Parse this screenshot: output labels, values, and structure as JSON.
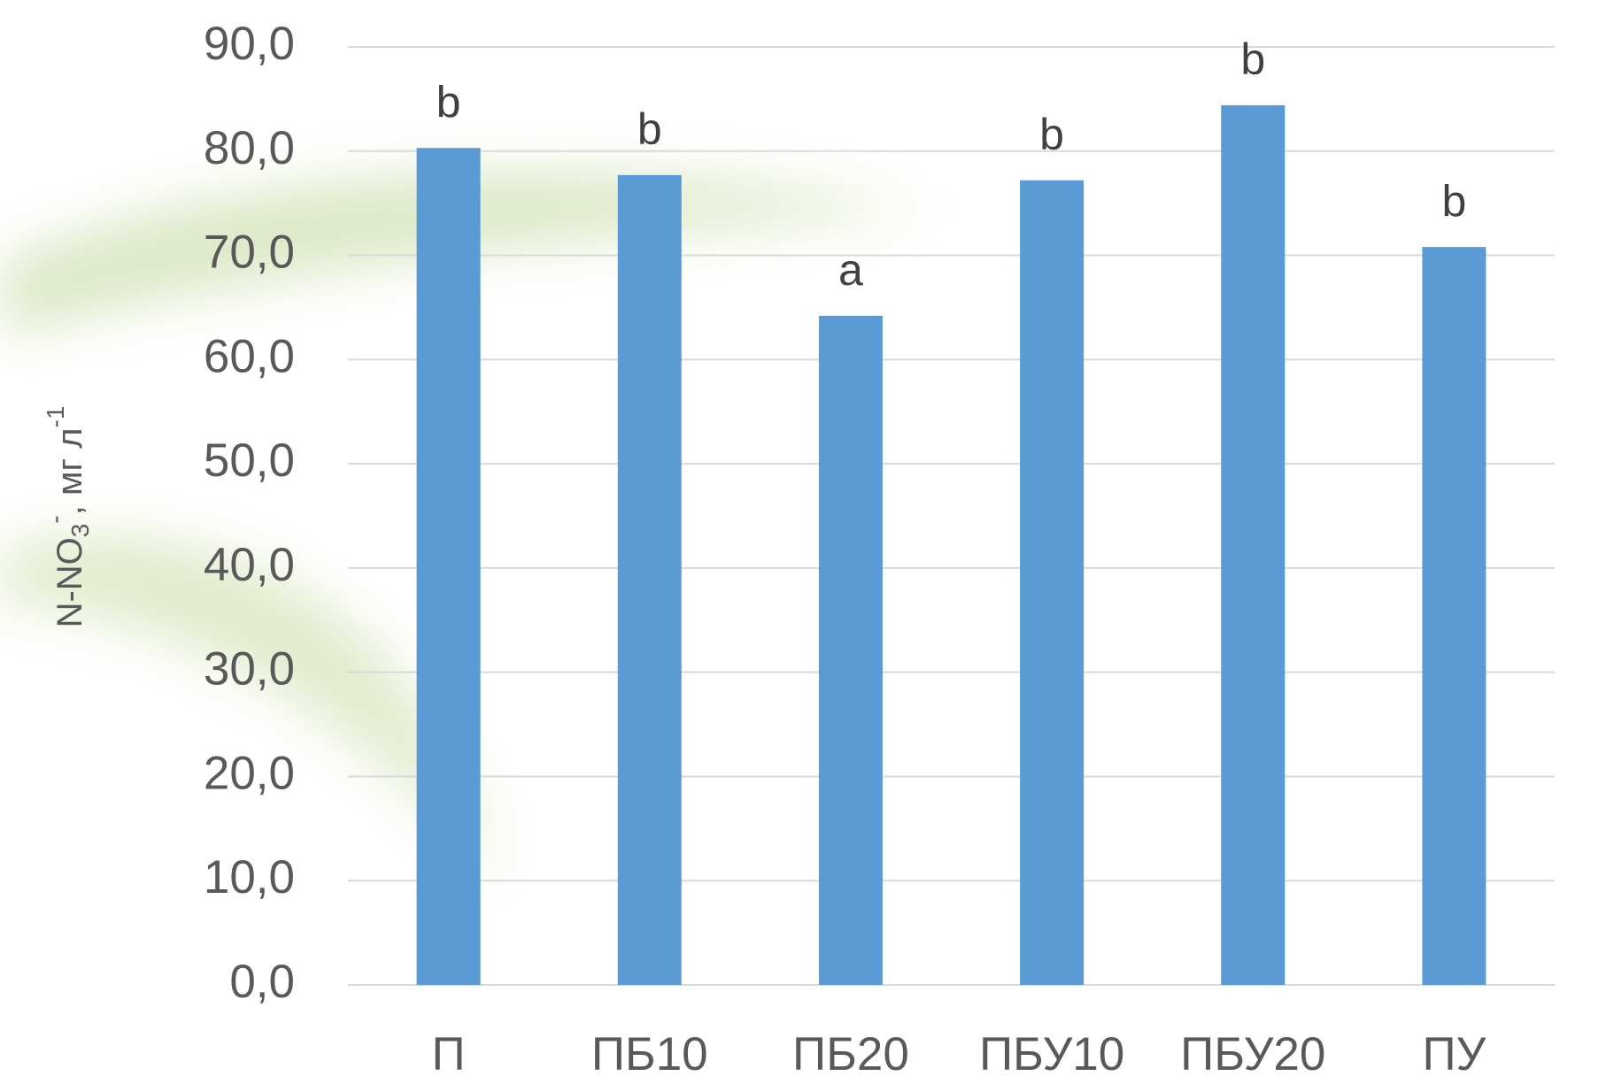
{
  "chart_data": {
    "type": "bar",
    "categories": [
      "П",
      "ПБ10",
      "ПБ20",
      "ПБУ10",
      "ПБУ20",
      "ПУ"
    ],
    "values": [
      80.3,
      77.7,
      64.2,
      77.2,
      84.4,
      70.8
    ],
    "annotations": [
      "b",
      "b",
      "a",
      "b",
      "b",
      "b"
    ],
    "color": "#5b9bd5",
    "ylabel": [
      "N-NO",
      "3",
      "-",
      ", мг л",
      "-1"
    ],
    "ylim": [
      0,
      90
    ],
    "yticks": [
      {
        "value": 0,
        "label": "0,0"
      },
      {
        "value": 10,
        "label": "10,0"
      },
      {
        "value": 20,
        "label": "20,0"
      },
      {
        "value": 30,
        "label": "30,0"
      },
      {
        "value": 40,
        "label": "40,0"
      },
      {
        "value": 50,
        "label": "50,0"
      },
      {
        "value": 60,
        "label": "60,0"
      },
      {
        "value": 70,
        "label": "70,0"
      },
      {
        "value": 80,
        "label": "80,0"
      },
      {
        "value": 90,
        "label": "90,0"
      }
    ],
    "grid": true
  }
}
